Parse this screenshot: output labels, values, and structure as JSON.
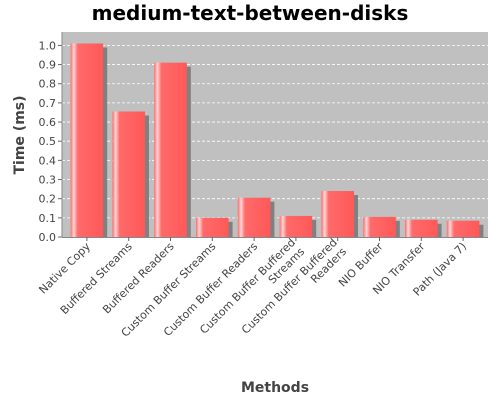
{
  "chart_data": {
    "type": "bar",
    "title": "medium-text-between-disks",
    "xlabel": "Methods",
    "ylabel": "Time (ms)",
    "ylim": [
      0,
      1.07
    ],
    "yticks": [
      "0.0",
      "0.1",
      "0.2",
      "0.3",
      "0.4",
      "0.5",
      "0.6",
      "0.7",
      "0.8",
      "0.9",
      "1.0"
    ],
    "grid": true,
    "categories": [
      [
        "Native Copy"
      ],
      [
        "Buffered Streams"
      ],
      [
        "Buffered Readers"
      ],
      [
        "Custom Buffer Streams"
      ],
      [
        "Custom Buffer Readers"
      ],
      [
        "Custom Buffer Buffered",
        "Streams"
      ],
      [
        "Custom Buffer Buffered",
        "Readers"
      ],
      [
        "NIO Buffer"
      ],
      [
        "NIO Transfer"
      ],
      [
        "Path (Java 7)"
      ]
    ],
    "values": [
      1.01,
      0.655,
      0.91,
      0.1,
      0.205,
      0.11,
      0.24,
      0.105,
      0.09,
      0.085
    ],
    "colors": {
      "plot_background": "#c0c0c0",
      "bar": "#ff6060",
      "bar_highlight": "#ffd0d0",
      "bar_shadow": "#808080",
      "gridline": "#ffffff"
    }
  }
}
